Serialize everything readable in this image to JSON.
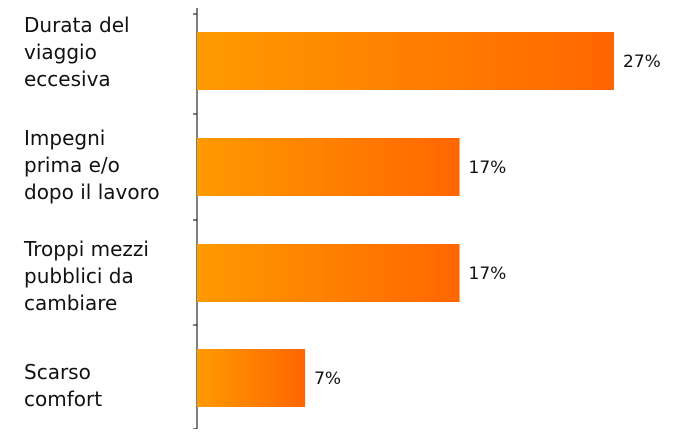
{
  "chart_data": {
    "type": "bar",
    "orientation": "horizontal",
    "categories": [
      "Durata del\nviaggio\neccesiva",
      "Impegni\nprima e/o\ndopo il lavoro",
      "Troppi mezzi\npubblici da\ncambiare",
      "Scarso\ncomfort"
    ],
    "values": [
      27,
      17,
      17,
      7
    ],
    "value_labels": [
      "27%",
      "17%",
      "17%",
      "7%"
    ],
    "title": "",
    "xlabel": "",
    "ylabel": "",
    "xlim": [
      0,
      30
    ],
    "grid": false,
    "legend": "none",
    "bar_color_start": "#FF9A00",
    "bar_color_end": "#FF6600"
  }
}
